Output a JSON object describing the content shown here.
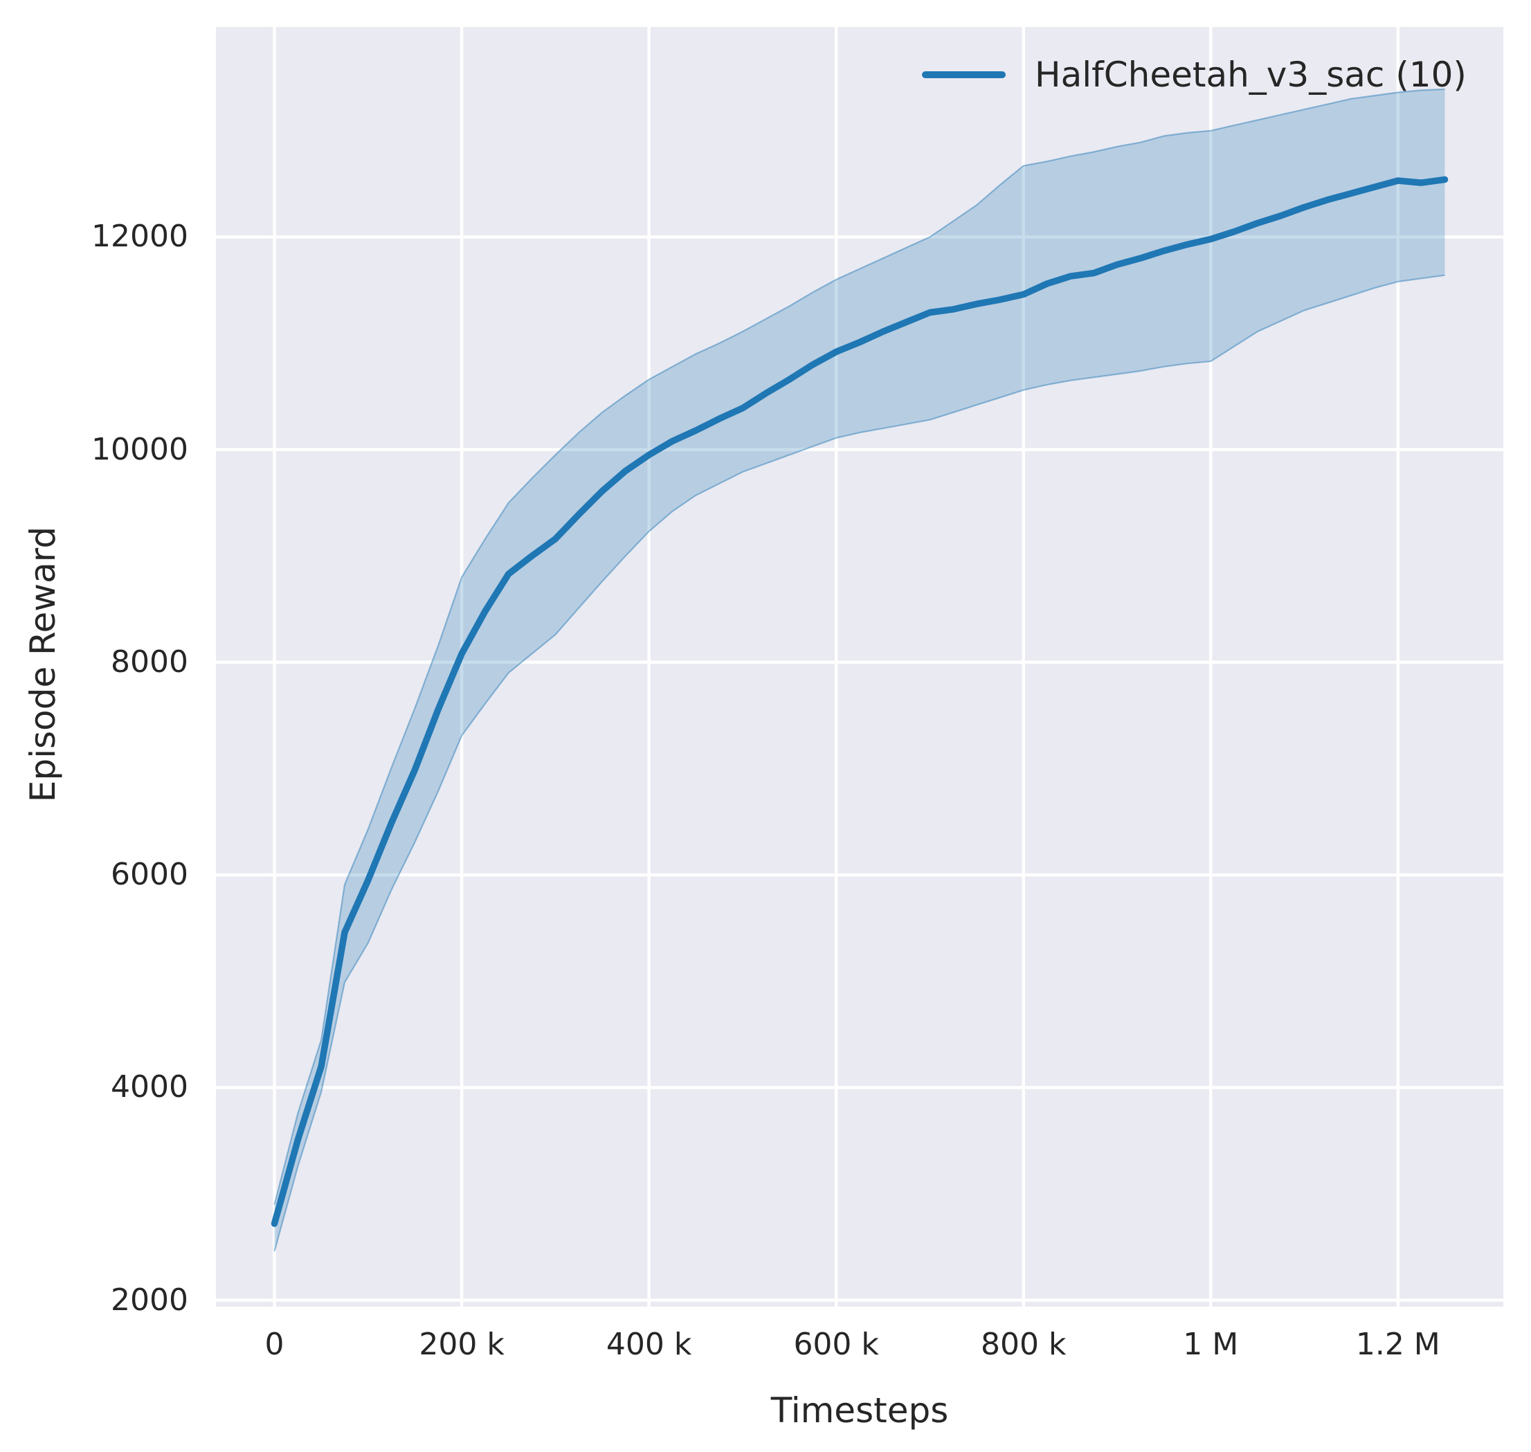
{
  "figure": {
    "background": "#ffffff",
    "plot_background": "#eaeaf2",
    "grid_color": "#ffffff",
    "text_color": "#262626"
  },
  "legend": {
    "entries": [
      {
        "label": "HalfCheetah_v3_sac (10)",
        "color": "#1f77b4"
      }
    ]
  },
  "chart_data": {
    "type": "line",
    "title": "",
    "xlabel": "Timesteps",
    "ylabel": "Episode Reward",
    "grid": true,
    "legend_position": "upper right",
    "xlim": [
      -62500,
      1312500
    ],
    "ylim": [
      1939,
      13975
    ],
    "x_ticks": [
      {
        "v": 0,
        "label": "0"
      },
      {
        "v": 200000,
        "label": "200 k"
      },
      {
        "v": 400000,
        "label": "400 k"
      },
      {
        "v": 600000,
        "label": "600 k"
      },
      {
        "v": 800000,
        "label": "800 k"
      },
      {
        "v": 1000000,
        "label": "1 M"
      },
      {
        "v": 1200000,
        "label": "1.2 M"
      }
    ],
    "y_ticks": [
      {
        "v": 2000,
        "label": "2000"
      },
      {
        "v": 4000,
        "label": "4000"
      },
      {
        "v": 6000,
        "label": "6000"
      },
      {
        "v": 8000,
        "label": "8000"
      },
      {
        "v": 10000,
        "label": "10000"
      },
      {
        "v": 12000,
        "label": "12000"
      }
    ],
    "series": [
      {
        "name": "HalfCheetah_v3_sac (10)",
        "color": "#1f77b4",
        "band_fill_alpha": 0.25,
        "band_edge_alpha": 0.45,
        "x": [
          0,
          25000,
          50000,
          75000,
          100000,
          125000,
          150000,
          175000,
          200000,
          225000,
          250000,
          275000,
          300000,
          325000,
          350000,
          375000,
          400000,
          425000,
          450000,
          475000,
          500000,
          525000,
          550000,
          575000,
          600000,
          625000,
          650000,
          675000,
          700000,
          725000,
          750000,
          775000,
          800000,
          825000,
          850000,
          875000,
          900000,
          925000,
          950000,
          975000,
          1000000,
          1025000,
          1050000,
          1075000,
          1100000,
          1125000,
          1150000,
          1175000,
          1200000,
          1225000,
          1250000
        ],
        "mean": [
          2720,
          3510,
          4200,
          5460,
          5950,
          6490,
          6990,
          7560,
          8080,
          8480,
          8830,
          9000,
          9160,
          9390,
          9610,
          9800,
          9950,
          10080,
          10180,
          10290,
          10390,
          10530,
          10660,
          10800,
          10920,
          11010,
          11110,
          11200,
          11290,
          11320,
          11370,
          11410,
          11460,
          11560,
          11630,
          11660,
          11740,
          11800,
          11870,
          11930,
          11980,
          12050,
          12130,
          12200,
          12280,
          12350,
          12410,
          12470,
          12530,
          12510,
          12540
        ],
        "lower": [
          2460,
          3260,
          3960,
          4990,
          5360,
          5860,
          6310,
          6790,
          7310,
          7610,
          7900,
          8080,
          8260,
          8510,
          8760,
          9000,
          9230,
          9420,
          9570,
          9680,
          9790,
          9870,
          9950,
          10030,
          10110,
          10160,
          10200,
          10240,
          10280,
          10350,
          10420,
          10490,
          10560,
          10610,
          10650,
          10680,
          10710,
          10740,
          10780,
          10810,
          10830,
          10970,
          11110,
          11210,
          11310,
          11380,
          11450,
          11520,
          11580,
          11610,
          11640
        ],
        "upper": [
          2900,
          3760,
          4450,
          5910,
          6430,
          7010,
          7570,
          8160,
          8800,
          9160,
          9500,
          9730,
          9950,
          10160,
          10350,
          10510,
          10660,
          10780,
          10900,
          11000,
          11110,
          11230,
          11350,
          11480,
          11600,
          11700,
          11800,
          11900,
          12000,
          12150,
          12300,
          12490,
          12670,
          12710,
          12760,
          12800,
          12850,
          12890,
          12950,
          12980,
          13000,
          13050,
          13100,
          13150,
          13200,
          13250,
          13300,
          13330,
          13360,
          13380,
          13390
        ]
      }
    ]
  }
}
